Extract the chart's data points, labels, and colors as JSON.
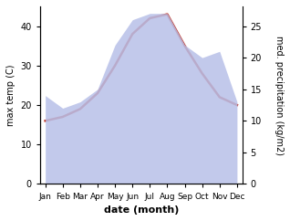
{
  "months": [
    "Jan",
    "Feb",
    "Mar",
    "Apr",
    "May",
    "Jun",
    "Jul",
    "Aug",
    "Sep",
    "Oct",
    "Nov",
    "Dec"
  ],
  "temp": [
    16,
    17,
    19,
    23,
    30,
    38,
    42,
    43,
    35,
    28,
    22,
    20
  ],
  "precip": [
    14,
    12,
    13,
    15,
    22,
    26,
    27,
    27,
    22,
    20,
    21,
    13
  ],
  "temp_color": "#c0392b",
  "precip_fill_color": "#b8c0e8",
  "temp_ylim": [
    0,
    45
  ],
  "precip_ylim": [
    0,
    28.125
  ],
  "temp_yticks": [
    0,
    10,
    20,
    30,
    40
  ],
  "precip_yticks": [
    0,
    5,
    10,
    15,
    20,
    25
  ],
  "ylabel_left": "max temp (C)",
  "ylabel_right": "med. precipitation (kg/m2)",
  "xlabel": "date (month)",
  "temp_linewidth": 1.8,
  "label_fontsize": 7,
  "tick_fontsize": 6.5,
  "xlabel_fontsize": 8
}
